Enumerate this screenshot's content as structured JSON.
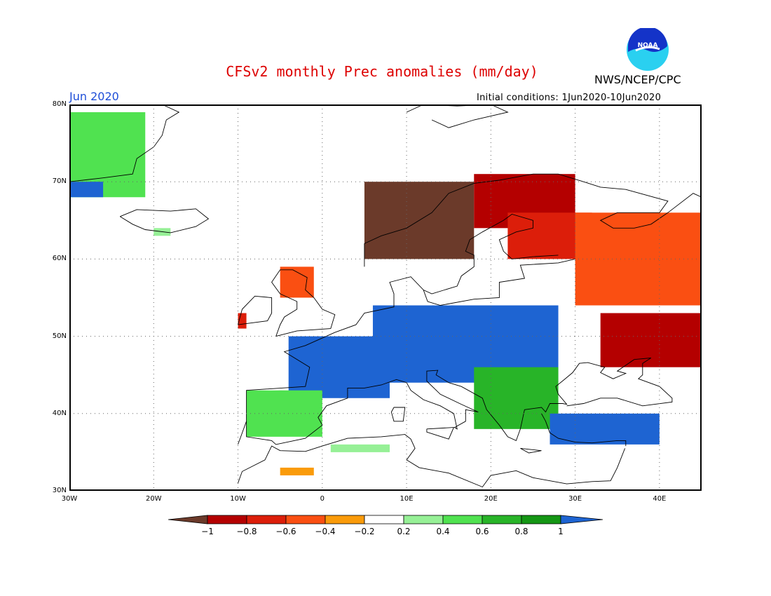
{
  "title": "CFSv2 monthly Prec anomalies (mm/day)",
  "valid_month": "Jun 2020",
  "initial_conditions": "Initial conditions: 1Jun2020-10Jun2020",
  "agency": "NWS/NCEP/CPC",
  "logo_text": "NOAA",
  "chart_data": {
    "type": "heatmap",
    "title": "CFSv2 monthly Prec anomalies (mm/day)",
    "region": "Europe",
    "xlim": [
      -30,
      45
    ],
    "ylim": [
      30,
      80
    ],
    "lon_ticks": [
      {
        "value": -30,
        "label": "30W"
      },
      {
        "value": -20,
        "label": "20W"
      },
      {
        "value": -10,
        "label": "10W"
      },
      {
        "value": 0,
        "label": "0"
      },
      {
        "value": 10,
        "label": "10E"
      },
      {
        "value": 20,
        "label": "20E"
      },
      {
        "value": 30,
        "label": "30E"
      },
      {
        "value": 40,
        "label": "40E"
      }
    ],
    "lat_ticks": [
      {
        "value": 30,
        "label": "30N"
      },
      {
        "value": 40,
        "label": "40N"
      },
      {
        "value": 50,
        "label": "50N"
      },
      {
        "value": 60,
        "label": "60N"
      },
      {
        "value": 70,
        "label": "70N"
      },
      {
        "value": 80,
        "label": "80N"
      }
    ],
    "grid": true,
    "colorbar": {
      "levels": [
        "-1",
        "-0.8",
        "-0.6",
        "-0.4",
        "-0.2",
        "0.2",
        "0.4",
        "0.6",
        "0.8",
        "1"
      ],
      "colors": [
        "#6b3a2a",
        "#b40000",
        "#dc1e0a",
        "#fa4f12",
        "#fa9b0a",
        "#ffffff",
        "#96f096",
        "#50e250",
        "#28b428",
        "#149614",
        "#1e64d2"
      ]
    },
    "regions": [
      {
        "name": "Greenland coast",
        "lon": [
          -30,
          -21
        ],
        "lat": [
          68,
          79
        ],
        "value": 0.5
      },
      {
        "name": "Greenland SE tip",
        "lon": [
          -30,
          -26
        ],
        "lat": [
          68,
          70
        ],
        "value": 1.2
      },
      {
        "name": "Iceland S",
        "lon": [
          -20,
          -18
        ],
        "lat": [
          63,
          64
        ],
        "value": 0.3
      },
      {
        "name": "Norway coast",
        "lon": [
          5,
          18
        ],
        "lat": [
          60,
          70
        ],
        "value": -1.1
      },
      {
        "name": "Scandinavia N",
        "lon": [
          18,
          30
        ],
        "lat": [
          64,
          71
        ],
        "value": -0.8
      },
      {
        "name": "Finland",
        "lon": [
          22,
          32
        ],
        "lat": [
          60,
          66
        ],
        "value": -0.6
      },
      {
        "name": "NW Russia",
        "lon": [
          30,
          45
        ],
        "lat": [
          54,
          66
        ],
        "value": -0.5
      },
      {
        "name": "S Russia / Ukraine",
        "lon": [
          33,
          45
        ],
        "lat": [
          46,
          53
        ],
        "value": -0.8
      },
      {
        "name": "Scotland",
        "lon": [
          -5,
          -1
        ],
        "lat": [
          55,
          59
        ],
        "value": -0.5
      },
      {
        "name": "Ireland W",
        "lon": [
          -10,
          -9
        ],
        "lat": [
          51,
          53
        ],
        "value": -0.6
      },
      {
        "name": "France / Benelux",
        "lon": [
          -4,
          8
        ],
        "lat": [
          42,
          50
        ],
        "value": 1.1
      },
      {
        "name": "Central Europe",
        "lon": [
          6,
          28
        ],
        "lat": [
          44,
          54
        ],
        "value": 1.1
      },
      {
        "name": "Iberia N",
        "lon": [
          -9,
          0
        ],
        "lat": [
          37,
          43
        ],
        "value": 0.6
      },
      {
        "name": "Balkans",
        "lon": [
          18,
          28
        ],
        "lat": [
          38,
          46
        ],
        "value": 0.7
      },
      {
        "name": "Turkey",
        "lon": [
          27,
          40
        ],
        "lat": [
          36,
          40
        ],
        "value": 1.1
      },
      {
        "name": "N Africa",
        "lon": [
          1,
          8
        ],
        "lat": [
          35,
          36
        ],
        "value": 0.3
      },
      {
        "name": "Morocco",
        "lon": [
          -5,
          -1
        ],
        "lat": [
          32,
          33
        ],
        "value": -0.3
      }
    ]
  }
}
